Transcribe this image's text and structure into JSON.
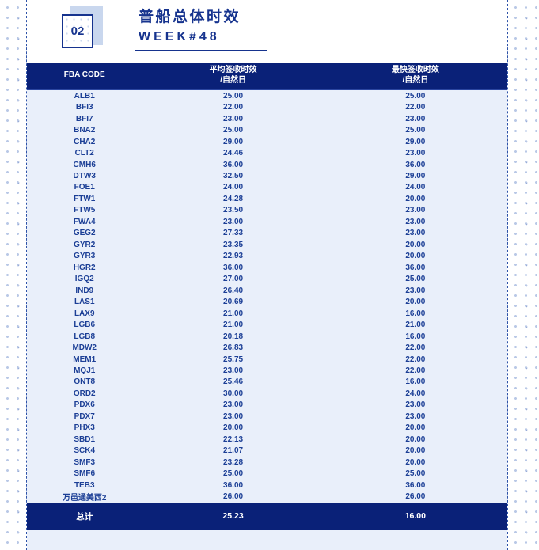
{
  "header": {
    "badge": "02",
    "title": "普船总体时效",
    "week": "WEEK#48"
  },
  "table": {
    "columns": [
      {
        "label": "FBA CODE"
      },
      {
        "label": "平均签收时效\n/自然日"
      },
      {
        "label": "最快签收时效\n/自然日"
      }
    ],
    "rows": [
      [
        "ALB1",
        "25.00",
        "25.00"
      ],
      [
        "BFI3",
        "22.00",
        "22.00"
      ],
      [
        "BFI7",
        "23.00",
        "23.00"
      ],
      [
        "BNA2",
        "25.00",
        "25.00"
      ],
      [
        "CHA2",
        "29.00",
        "29.00"
      ],
      [
        "CLT2",
        "24.46",
        "23.00"
      ],
      [
        "CMH6",
        "36.00",
        "36.00"
      ],
      [
        "DTW3",
        "32.50",
        "29.00"
      ],
      [
        "FOE1",
        "24.00",
        "24.00"
      ],
      [
        "FTW1",
        "24.28",
        "20.00"
      ],
      [
        "FTW5",
        "23.50",
        "23.00"
      ],
      [
        "FWA4",
        "23.00",
        "23.00"
      ],
      [
        "GEG2",
        "27.33",
        "23.00"
      ],
      [
        "GYR2",
        "23.35",
        "20.00"
      ],
      [
        "GYR3",
        "22.93",
        "20.00"
      ],
      [
        "HGR2",
        "36.00",
        "36.00"
      ],
      [
        "IGQ2",
        "27.00",
        "25.00"
      ],
      [
        "IND9",
        "26.40",
        "23.00"
      ],
      [
        "LAS1",
        "20.69",
        "20.00"
      ],
      [
        "LAX9",
        "21.00",
        "16.00"
      ],
      [
        "LGB6",
        "21.00",
        "21.00"
      ],
      [
        "LGB8",
        "20.18",
        "16.00"
      ],
      [
        "MDW2",
        "26.83",
        "22.00"
      ],
      [
        "MEM1",
        "25.75",
        "22.00"
      ],
      [
        "MQJ1",
        "23.00",
        "22.00"
      ],
      [
        "ONT8",
        "25.46",
        "16.00"
      ],
      [
        "ORD2",
        "30.00",
        "24.00"
      ],
      [
        "PDX6",
        "23.00",
        "23.00"
      ],
      [
        "PDX7",
        "23.00",
        "23.00"
      ],
      [
        "PHX3",
        "20.00",
        "20.00"
      ],
      [
        "SBD1",
        "22.13",
        "20.00"
      ],
      [
        "SCK4",
        "21.07",
        "20.00"
      ],
      [
        "SMF3",
        "23.28",
        "20.00"
      ],
      [
        "SMF6",
        "25.00",
        "25.00"
      ],
      [
        "TEB3",
        "36.00",
        "36.00"
      ],
      [
        "万邑通美西2",
        "26.00",
        "26.00"
      ]
    ],
    "total": {
      "label": "总计",
      "avg": "25.23",
      "fastest": "16.00"
    }
  },
  "colors": {
    "navy_header": "#0a2178",
    "title_navy": "#16338e",
    "row_text": "#1c3f96",
    "row_bg": "#e9effa",
    "badge_shadow": "#c9d7ee",
    "dash_line": "#2d52a8"
  }
}
